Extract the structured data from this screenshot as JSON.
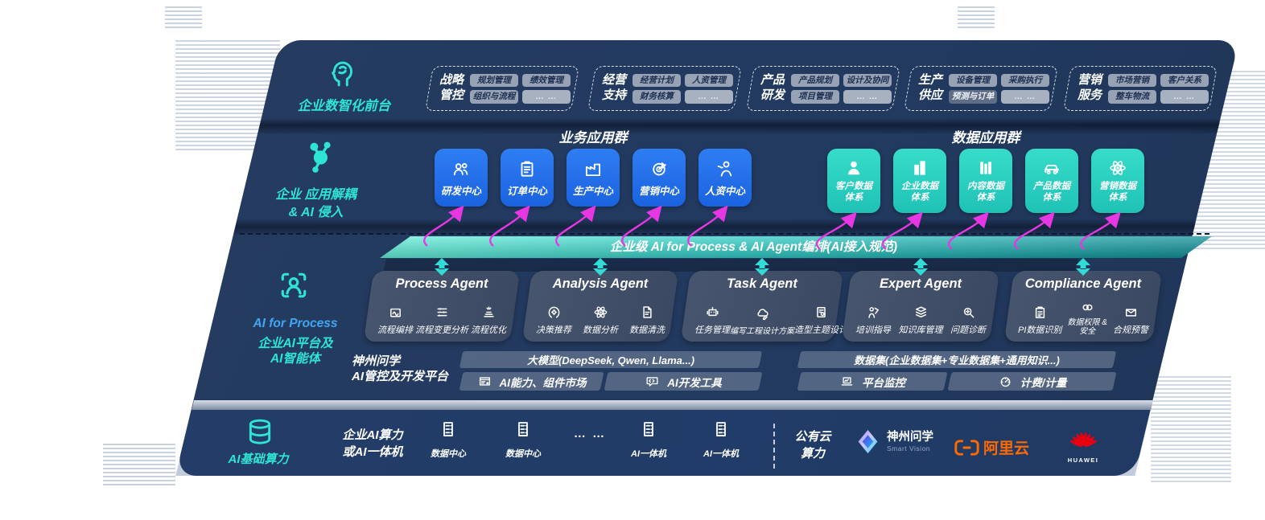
{
  "colors": {
    "panel_navy": "#233a5e",
    "accent_teal": "#2ee4d2",
    "box_blue": "#1d6cec",
    "box_teal": "#27cfc2",
    "magenta_arrow": "#e637e2",
    "banner_teal_from": "#64eed8",
    "banner_teal_to": "#0d8d95",
    "alicloud_orange": "#ff6a00",
    "huawei_red": "#e60012"
  },
  "front_office": {
    "label": "企业数智化前台",
    "icon": "brain-icon",
    "groups": [
      {
        "title_lines": [
          "战略",
          "管控"
        ],
        "chips": [
          {
            "label": "规划管理"
          },
          {
            "label": "绩效管理"
          },
          {
            "label": "组织与流程"
          },
          {
            "label": "… …",
            "variant": "muted"
          }
        ]
      },
      {
        "title_lines": [
          "经营",
          "支持"
        ],
        "chips": [
          {
            "label": "经营计划"
          },
          {
            "label": "人资管理"
          },
          {
            "label": "财务核算"
          },
          {
            "label": "… …",
            "variant": "muted"
          }
        ]
      },
      {
        "title_lines": [
          "产品",
          "研发"
        ],
        "chips": [
          {
            "label": "产品规划"
          },
          {
            "label": "设计及协同"
          },
          {
            "label": "项目管理"
          },
          {
            "label": "… …",
            "variant": "muted"
          }
        ]
      },
      {
        "title_lines": [
          "生产",
          "供应"
        ],
        "chips": [
          {
            "label": "设备管理"
          },
          {
            "label": "采购执行"
          },
          {
            "label": "预测与订单",
            "variant": "dark"
          },
          {
            "label": "… …",
            "variant": "muted"
          }
        ]
      },
      {
        "title_lines": [
          "营销",
          "服务"
        ],
        "chips": [
          {
            "label": "市场营销"
          },
          {
            "label": "客户关系"
          },
          {
            "label": "整车物流"
          },
          {
            "label": "… …",
            "variant": "muted"
          }
        ]
      }
    ]
  },
  "decouple": {
    "label_line1": "企业 应用解耦",
    "label_line2": "& AI 侵入",
    "icon": "molecule-icon",
    "business": {
      "title": "业务应用群",
      "boxes": [
        {
          "label": "研发中心",
          "icon": "team-icon"
        },
        {
          "label": "订单中心",
          "icon": "clipboard-icon"
        },
        {
          "label": "生产中心",
          "icon": "factory-icon"
        },
        {
          "label": "营销中心",
          "icon": "target-icon"
        },
        {
          "label": "人资中心",
          "icon": "person-flow-icon"
        }
      ]
    },
    "data": {
      "title": "数据应用群",
      "boxes": [
        {
          "label": "客户数据",
          "label2": "体系",
          "icon": "person-icon"
        },
        {
          "label": "企业数据",
          "label2": "体系",
          "icon": "building-icon"
        },
        {
          "label": "内容数据",
          "label2": "体系",
          "icon": "content-icon"
        },
        {
          "label": "产品数据",
          "label2": "体系",
          "icon": "car-icon"
        },
        {
          "label": "营销数据",
          "label2": "体系",
          "icon": "atom-icon"
        }
      ]
    }
  },
  "banner": {
    "text": "企业级 AI for Process & AI Agent编排(AI接入规范)"
  },
  "ai_platform": {
    "label_line1": "AI for Process",
    "label_line2": "企业AI平台及",
    "label_line3": "AI智能体",
    "icon": "person-scan-icon",
    "agents": [
      {
        "title": "Process Agent",
        "items": [
          {
            "label": "流程编排",
            "icon": "workflow-icon"
          },
          {
            "label": "流程变更分析",
            "icon": "flow-change-icon"
          },
          {
            "label": "流程优化",
            "icon": "flow-optimize-icon"
          }
        ]
      },
      {
        "title": "Analysis Agent",
        "items": [
          {
            "label": "决策推荐",
            "icon": "decision-icon"
          },
          {
            "label": "数据分析",
            "icon": "atom-icon"
          },
          {
            "label": "数据清洗",
            "icon": "clean-icon"
          }
        ]
      },
      {
        "title": "Task Agent",
        "items": [
          {
            "label": "任务管理",
            "icon": "robot-icon"
          },
          {
            "label": "编写工程设计方案",
            "icon": "cloud-design-icon"
          },
          {
            "label": "造型主题设计",
            "icon": "theme-design-icon"
          }
        ]
      },
      {
        "title": "Expert Agent",
        "items": [
          {
            "label": "培训指导",
            "icon": "training-icon"
          },
          {
            "label": "知识库管理",
            "icon": "knowledge-icon"
          },
          {
            "label": "问题诊断",
            "icon": "diagnose-icon"
          }
        ]
      },
      {
        "title": "Compliance Agent",
        "items": [
          {
            "label": "PI数据识别",
            "icon": "id-card-icon"
          },
          {
            "label": "数据权限 & 安全",
            "icon": "permission-icon",
            "wrap": true
          },
          {
            "label": "合规预警",
            "icon": "mail-alert-icon"
          }
        ]
      }
    ],
    "platform": {
      "name_line1": "神州问学",
      "name_line2": "AI管控及开发平台",
      "model_bar": "大模型(DeepSeek, Qwen, Llama...)",
      "left_cells": [
        {
          "label": "AI能力、组件市场",
          "icon": "market-icon"
        },
        {
          "label": "AI开发工具",
          "icon": "devtools-icon"
        }
      ],
      "dataset_bar": "数据集(企业数据集+专业数据集+通用知识...)",
      "right_cells": [
        {
          "label": "平台监控",
          "icon": "monitor-icon"
        },
        {
          "label": "计费/计量",
          "icon": "gauge-icon"
        }
      ]
    }
  },
  "infrastructure": {
    "label": "AI基础算力",
    "icon": "database-icon",
    "compute_line1": "企业AI算力",
    "compute_line2": "或AI一体机",
    "servers": [
      {
        "label": "数据中心",
        "icon": "server-icon"
      },
      {
        "label": "数据中心",
        "icon": "server-icon"
      },
      {
        "label": "… …",
        "type": "dots"
      },
      {
        "label": "AI一体机",
        "icon": "server-icon"
      },
      {
        "label": "AI一体机",
        "icon": "server-icon"
      }
    ],
    "public_cloud_line1": "公有云",
    "public_cloud_line2": "算力",
    "vendors": [
      {
        "name": "神州问学",
        "subtitle": "Smart Vision",
        "icon": "smartvision-logo"
      },
      {
        "name": "阿里云",
        "icon": "alicloud-logo"
      },
      {
        "name": "HUAWEI",
        "icon": "huawei-logo"
      }
    ]
  }
}
